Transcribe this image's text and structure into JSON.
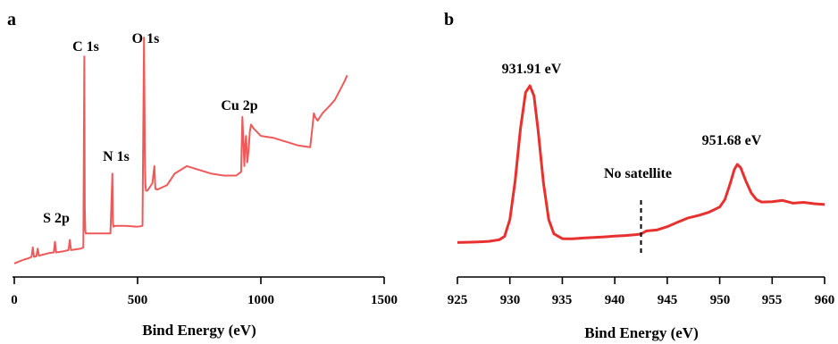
{
  "chart_data": [
    {
      "type": "line",
      "panel_label": "a",
      "title": "",
      "xlabel": "Bind Energy (eV)",
      "ylabel": "",
      "xlim": [
        0,
        1500
      ],
      "xticks": [
        "0",
        "500",
        "1000",
        "1500"
      ],
      "y_axis_visible": false,
      "grid": false,
      "line_color": "#ee5a5a",
      "series": [
        {
          "x": [
            0,
            20,
            40,
            60,
            70,
            75,
            80,
            90,
            95,
            100,
            110,
            140,
            160,
            165,
            170,
            200,
            220,
            225,
            230,
            270,
            280,
            284,
            286,
            288,
            290,
            300,
            350,
            390,
            398,
            400,
            402,
            410,
            450,
            500,
            520,
            526,
            530,
            532,
            534,
            540,
            560,
            568,
            572,
            580,
            620,
            650,
            700,
            750,
            800,
            850,
            900,
            920,
            925,
            930,
            933,
            936,
            940,
            945,
            950,
            955,
            960,
            970,
            1000,
            1050,
            1100,
            1150,
            1200,
            1210,
            1215,
            1220,
            1230,
            1250,
            1280,
            1300,
            1320,
            1340,
            1350
          ],
          "y": [
            0.25,
            0.8,
            1.3,
            1.7,
            2.0,
            4.5,
            2.0,
            2.2,
            4.2,
            2.3,
            2.5,
            3.0,
            3.2,
            6.0,
            3.2,
            3.5,
            3.8,
            6.5,
            3.8,
            4.2,
            4.5,
            55.0,
            15.0,
            9.0,
            8.2,
            8.2,
            8.2,
            8.2,
            24.0,
            11.0,
            10.0,
            10.2,
            10.2,
            10.0,
            10.2,
            60.0,
            26.0,
            21.0,
            19.5,
            19.5,
            21.5,
            26.0,
            20.0,
            19.8,
            21.0,
            24.0,
            26.0,
            25.0,
            24.0,
            23.5,
            23.5,
            24.5,
            39.0,
            31.0,
            26.0,
            31.0,
            34.0,
            27.0,
            30.0,
            35.0,
            37.0,
            36.0,
            34.0,
            33.5,
            32.5,
            31.5,
            31.0,
            37.0,
            40.0,
            39.0,
            38.0,
            40.0,
            42.0,
            43.5,
            46.0,
            48.5,
            50.0
          ]
        }
      ],
      "annotations": [
        "C 1s",
        "O 1s",
        "N 1s",
        "S 2p",
        "Cu 2p"
      ]
    },
    {
      "type": "line",
      "panel_label": "b",
      "title": "",
      "xlabel": "Bind Energy (eV)",
      "ylabel": "",
      "xlim": [
        925,
        960
      ],
      "xticks": [
        "925",
        "930",
        "935",
        "940",
        "945",
        "950",
        "955",
        "960"
      ],
      "y_axis_visible": false,
      "grid": false,
      "line_color": "#e8312e",
      "series": [
        {
          "x": [
            925,
            926,
            927,
            928,
            929,
            929.5,
            930,
            930.5,
            931,
            931.5,
            931.91,
            932.3,
            932.7,
            933.2,
            933.7,
            934.2,
            935,
            936,
            937,
            938,
            939,
            940,
            941,
            942,
            942.5,
            943,
            944,
            945,
            946,
            947,
            948,
            949,
            950,
            950.5,
            951,
            951.4,
            951.68,
            952,
            952.5,
            953,
            953.5,
            954,
            955,
            956,
            957,
            958,
            959,
            960
          ],
          "y": [
            0.3,
            0.5,
            0.7,
            1.0,
            2.0,
            4.0,
            14.0,
            37.0,
            68.0,
            90.0,
            94.0,
            88.0,
            67.0,
            36.0,
            14.0,
            5.5,
            2.6,
            2.5,
            3.0,
            3.3,
            3.7,
            4.1,
            4.5,
            5.0,
            5.4,
            7.2,
            7.8,
            9.8,
            12.5,
            15.0,
            16.5,
            18.5,
            21.5,
            26.0,
            35.5,
            44.0,
            47.0,
            45.0,
            37.0,
            30.0,
            26.0,
            24.5,
            24.7,
            25.5,
            23.8,
            24.3,
            23.5,
            23.0
          ]
        }
      ],
      "annotations": [
        "931.91 eV",
        "951.68 eV",
        "No satellite"
      ],
      "marker_line_x": 942.5
    }
  ]
}
